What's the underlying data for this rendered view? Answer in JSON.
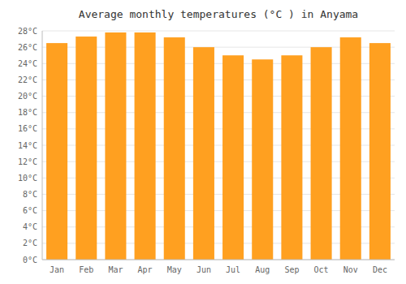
{
  "chart_data": {
    "type": "bar",
    "title": "Average monthly temperatures (°C ) in Anyama",
    "categories": [
      "Jan",
      "Feb",
      "Mar",
      "Apr",
      "May",
      "Jun",
      "Jul",
      "Aug",
      "Sep",
      "Oct",
      "Nov",
      "Dec"
    ],
    "values": [
      26.5,
      27.3,
      27.8,
      27.8,
      27.2,
      26.0,
      25.0,
      24.5,
      25.0,
      26.0,
      27.2,
      26.5
    ],
    "color": "#FFA020",
    "ylim": [
      0,
      28
    ],
    "yticks": [
      {
        "value": 0,
        "label": "0°C"
      },
      {
        "value": 2,
        "label": "2°C"
      },
      {
        "value": 4,
        "label": "4°C"
      },
      {
        "value": 6,
        "label": "6°C"
      },
      {
        "value": 8,
        "label": "8°C"
      },
      {
        "value": 10,
        "label": "10°C"
      },
      {
        "value": 12,
        "label": "12°C"
      },
      {
        "value": 14,
        "label": "14°C"
      },
      {
        "value": 16,
        "label": "16°C"
      },
      {
        "value": 18,
        "label": "18°C"
      },
      {
        "value": 20,
        "label": "20°C"
      },
      {
        "value": 22,
        "label": "22°C"
      },
      {
        "value": 24,
        "label": "24°C"
      },
      {
        "value": 26,
        "label": "26°C"
      },
      {
        "value": 28,
        "label": "28°C"
      }
    ],
    "grid": true
  }
}
